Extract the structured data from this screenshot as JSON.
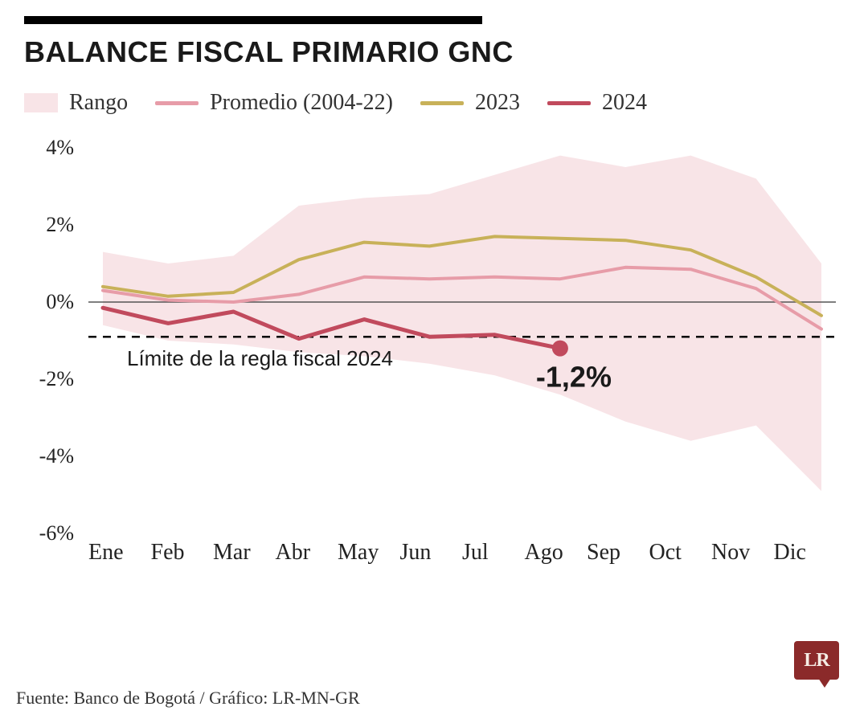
{
  "title": "BALANCE FISCAL PRIMARIO GNC",
  "legend": {
    "range": "Rango",
    "avg": "Promedio (2004-22)",
    "y2023": "2023",
    "y2024": "2024"
  },
  "colors": {
    "range_fill": "#f8e4e7",
    "avg_line": "#e79ca8",
    "y2023_line": "#c8b159",
    "y2024_line": "#c14a5d",
    "zero_axis": "#555555",
    "background": "#ffffff",
    "title_rule": "#000000",
    "text": "#1a1a1a",
    "brand_bg": "#8b2a2a",
    "brand_fg": "#f5ece4"
  },
  "chart": {
    "type": "line",
    "months": [
      "Ene",
      "Feb",
      "Mar",
      "Abr",
      "May",
      "Jun",
      "Jul",
      "Ago",
      "Sep",
      "Oct",
      "Nov",
      "Dic"
    ],
    "ylim": [
      -6,
      4
    ],
    "yticks": [
      4,
      2,
      0,
      -2,
      -4,
      -6
    ],
    "ytick_labels": [
      "4%",
      "2%",
      "0%",
      "-2%",
      "-4%",
      "-6%"
    ],
    "range_upper": [
      1.3,
      1.0,
      1.2,
      2.5,
      2.7,
      2.8,
      3.3,
      3.8,
      3.5,
      3.8,
      3.2,
      1.0
    ],
    "range_lower": [
      -0.6,
      -1.0,
      -1.1,
      -1.3,
      -1.4,
      -1.6,
      -1.9,
      -2.4,
      -3.1,
      -3.6,
      -3.2,
      -4.9
    ],
    "avg": [
      0.3,
      0.05,
      0.0,
      0.2,
      0.65,
      0.6,
      0.65,
      0.6,
      0.9,
      0.85,
      0.35,
      -0.7
    ],
    "y2023": [
      0.4,
      0.15,
      0.25,
      1.1,
      1.55,
      1.45,
      1.7,
      1.65,
      1.6,
      1.35,
      0.65,
      -0.35
    ],
    "y2024": [
      -0.15,
      -0.55,
      -0.25,
      -0.95,
      -0.45,
      -0.9,
      -0.85,
      -1.2
    ],
    "fiscal_limit": -0.9,
    "limit_label": "Límite de la regla fiscal 2024",
    "callout_value": "-1,2%",
    "line_width_thin": 4,
    "line_width_thick": 5,
    "marker_radius": 10
  },
  "source": "Fuente: Banco de Bogotá / Gráfico: LR-MN-GR",
  "brand": "LR"
}
